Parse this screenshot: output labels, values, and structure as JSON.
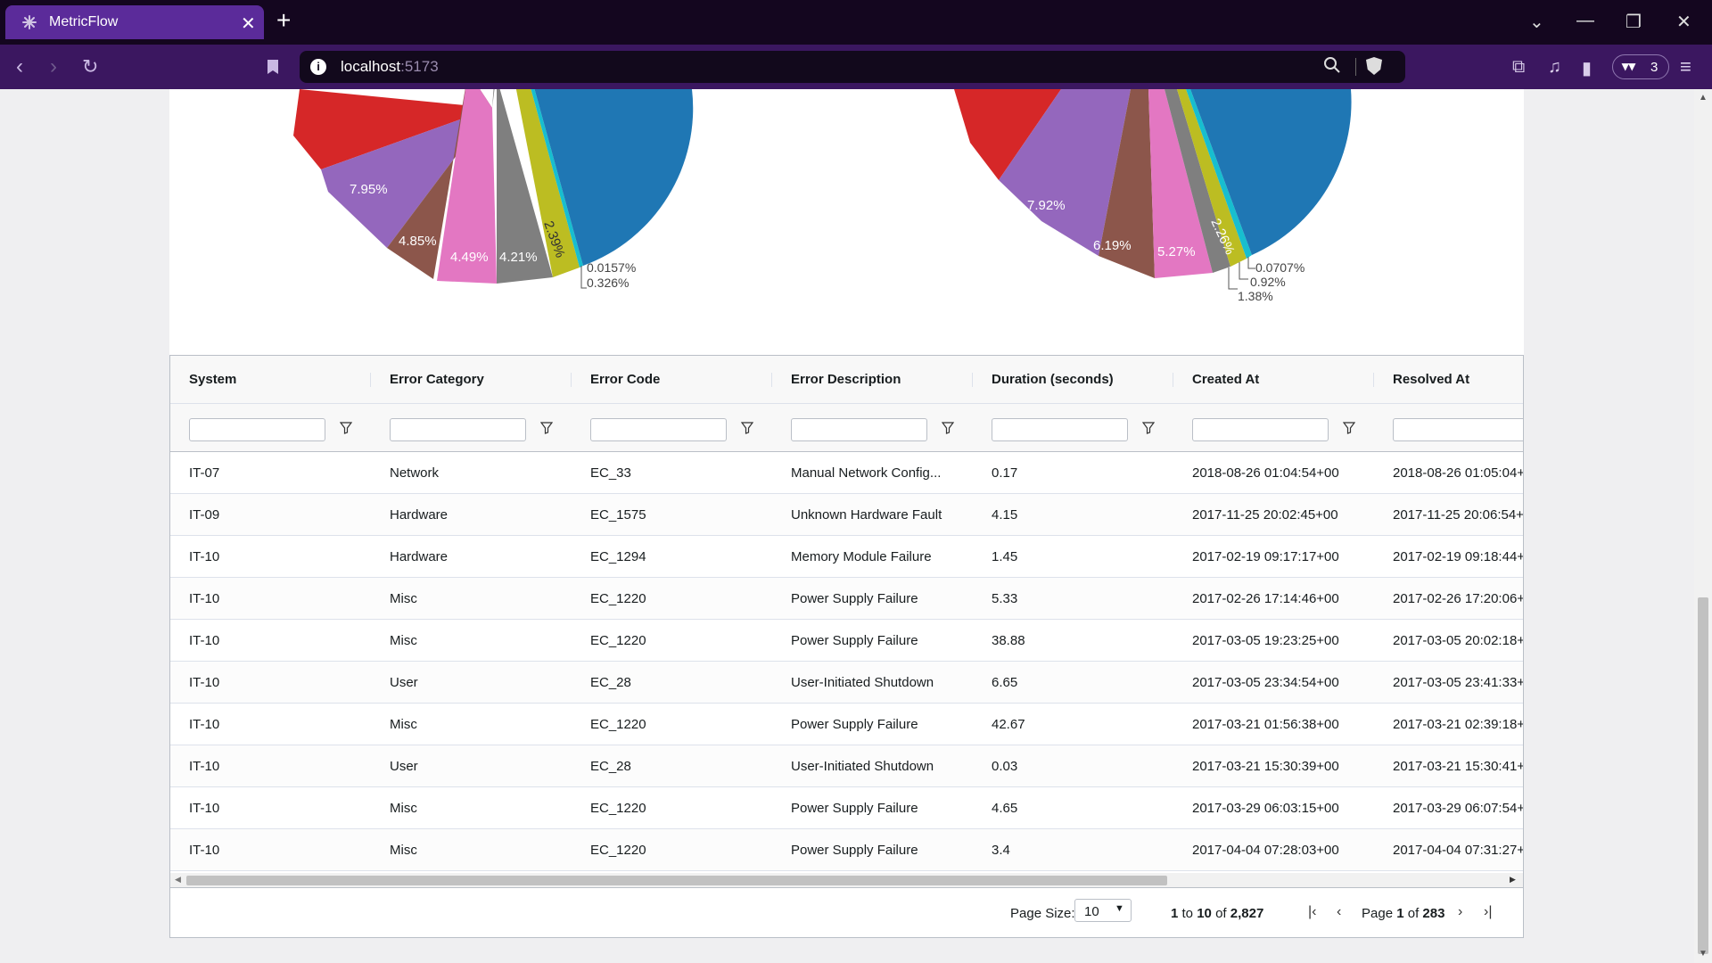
{
  "browser": {
    "tab_title": "MetricFlow",
    "url_host": "localhost",
    "url_port": ":5173",
    "wallet_count": "3"
  },
  "charts": {
    "left": {
      "slice_labels": [
        "7.95%",
        "4.85%",
        "4.49%",
        "4.21%",
        "2.39%"
      ],
      "small_labels": [
        "0.0157%",
        "0.326%"
      ]
    },
    "right": {
      "slice_labels": [
        "7.92%",
        "6.19%",
        "5.27%",
        "2.26%"
      ],
      "small_labels": [
        "0.0707%",
        "0.92%",
        "1.38%"
      ]
    },
    "colors": {
      "red": "#d62728",
      "purple": "#9467bd",
      "brown": "#8c564b",
      "pink": "#e377c2",
      "gray": "#7f7f7f",
      "olive": "#bcbd22",
      "cyan": "#17becf",
      "blue": "#1f77b4"
    }
  },
  "grid": {
    "columns": [
      "System",
      "Error Category",
      "Error Code",
      "Error Description",
      "Duration (seconds)",
      "Created At",
      "Resolved At"
    ],
    "rows": [
      [
        "IT-07",
        "Network",
        "EC_33",
        "Manual Network Config...",
        "0.17",
        "2018-08-26 01:04:54+00",
        "2018-08-26 01:05:04+"
      ],
      [
        "IT-09",
        "Hardware",
        "EC_1575",
        "Unknown Hardware Fault",
        "4.15",
        "2017-11-25 20:02:45+00",
        "2017-11-25 20:06:54+"
      ],
      [
        "IT-10",
        "Hardware",
        "EC_1294",
        "Memory Module Failure",
        "1.45",
        "2017-02-19 09:17:17+00",
        "2017-02-19 09:18:44+"
      ],
      [
        "IT-10",
        "Misc",
        "EC_1220",
        "Power Supply Failure",
        "5.33",
        "2017-02-26 17:14:46+00",
        "2017-02-26 17:20:06+"
      ],
      [
        "IT-10",
        "Misc",
        "EC_1220",
        "Power Supply Failure",
        "38.88",
        "2017-03-05 19:23:25+00",
        "2017-03-05 20:02:18+"
      ],
      [
        "IT-10",
        "User",
        "EC_28",
        "User-Initiated Shutdown",
        "6.65",
        "2017-03-05 23:34:54+00",
        "2017-03-05 23:41:33+"
      ],
      [
        "IT-10",
        "Misc",
        "EC_1220",
        "Power Supply Failure",
        "42.67",
        "2017-03-21 01:56:38+00",
        "2017-03-21 02:39:18+"
      ],
      [
        "IT-10",
        "User",
        "EC_28",
        "User-Initiated Shutdown",
        "0.03",
        "2017-03-21 15:30:39+00",
        "2017-03-21 15:30:41+"
      ],
      [
        "IT-10",
        "Misc",
        "EC_1220",
        "Power Supply Failure",
        "4.65",
        "2017-03-29 06:03:15+00",
        "2017-03-29 06:07:54+"
      ],
      [
        "IT-10",
        "Misc",
        "EC_1220",
        "Power Supply Failure",
        "3.4",
        "2017-04-04 07:28:03+00",
        "2017-04-04 07:31:27+"
      ]
    ]
  },
  "paging": {
    "page_size_label": "Page Size:",
    "page_size_value": "10",
    "range_from": "1",
    "range_to_word": "to",
    "range_to": "10",
    "range_of_word": "of",
    "total": "2,827",
    "page_word": "Page",
    "page_current": "1",
    "page_of_word": "of",
    "page_total": "283"
  }
}
